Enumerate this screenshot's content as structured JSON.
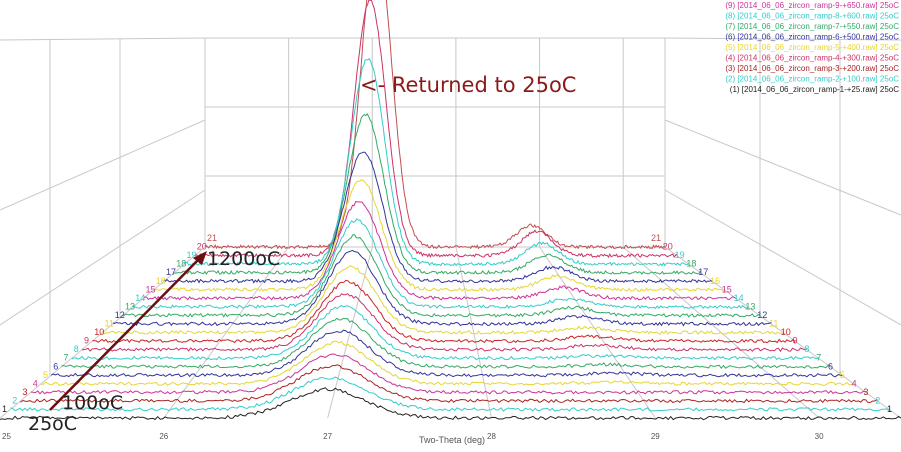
{
  "chart_data": {
    "type": "line",
    "view": "3d-waterfall",
    "xlabel": "Two-Theta (deg)",
    "xlim": [
      25,
      30.5
    ],
    "x_ticks": [
      "25",
      "26",
      "27",
      "28",
      "29",
      "30"
    ],
    "grid": true,
    "legend_position": "top-right",
    "legend": [
      "(9) [2014_06_06_zircon_ramp-9-+650.raw] 25oC",
      "(8) [2014_06_06_zircon_ramp-8-+600.raw] 25oC",
      "(7) [2014_06_06_zircon_ramp-7-+550.raw] 25oC",
      "(6) [2014_06_06_zircon_ramp-6-+500.raw] 25oC",
      "(5) [2014_06_06_zircon_ramp-5-+400.raw] 25oC",
      "(4) [2014_06_06_zircon_ramp-4-+300.raw] 25oC",
      "(3) [2014_06_06_zircon_ramp-3-+200.raw] 25oC",
      "(2) [2014_06_06_zircon_ramp-2-+100.raw] 25oC",
      "(1) [2014_06_06_zircon_ramp-1-+25.raw] 25oC"
    ],
    "legend_colors": [
      "#cc3399",
      "#33cccc",
      "#33aa66",
      "#333399",
      "#e6d633",
      "#cc3366",
      "#aa2222",
      "#33cccc",
      "#222222"
    ],
    "series_colors": [
      "#222222",
      "#33cccc",
      "#aa2222",
      "#cc3399",
      "#e6d633",
      "#333399",
      "#33aa66",
      "#33cccc",
      "#cc3366",
      "#cc2222",
      "#e6d633",
      "#333399",
      "#33aa66",
      "#33cccc",
      "#cc3399",
      "#e6d633",
      "#333399",
      "#33aa66",
      "#33cccc",
      "#cc3366",
      "#c05050"
    ],
    "series": [
      {
        "index": 1,
        "peak_x": 27.0,
        "peak_intensity": 0.16,
        "peak2_x": 28.9,
        "peak2_intensity": 0.0
      },
      {
        "index": 2,
        "peak_x": 27.0,
        "peak_intensity": 0.17,
        "peak2_x": 28.9,
        "peak2_intensity": 0.0
      },
      {
        "index": 3,
        "peak_x": 27.0,
        "peak_intensity": 0.18,
        "peak2_x": 28.9,
        "peak2_intensity": 0.0
      },
      {
        "index": 4,
        "peak_x": 27.0,
        "peak_intensity": 0.19,
        "peak2_x": 28.9,
        "peak2_intensity": 0.0
      },
      {
        "index": 5,
        "peak_x": 27.0,
        "peak_intensity": 0.2,
        "peak2_x": 28.9,
        "peak2_intensity": 0.01
      },
      {
        "index": 6,
        "peak_x": 27.0,
        "peak_intensity": 0.21,
        "peak2_x": 28.9,
        "peak2_intensity": 0.01
      },
      {
        "index": 7,
        "peak_x": 27.0,
        "peak_intensity": 0.22,
        "peak2_x": 28.9,
        "peak2_intensity": 0.01
      },
      {
        "index": 8,
        "peak_x": 27.0,
        "peak_intensity": 0.23,
        "peak2_x": 28.9,
        "peak2_intensity": 0.01
      },
      {
        "index": 9,
        "peak_x": 27.0,
        "peak_intensity": 0.24,
        "peak2_x": 28.9,
        "peak2_intensity": 0.02
      },
      {
        "index": 10,
        "peak_x": 27.0,
        "peak_intensity": 0.25,
        "peak2_x": 28.9,
        "peak2_intensity": 0.02
      },
      {
        "index": 11,
        "peak_x": 27.0,
        "peak_intensity": 0.27,
        "peak2_x": 28.9,
        "peak2_intensity": 0.02
      },
      {
        "index": 12,
        "peak_x": 27.0,
        "peak_intensity": 0.29,
        "peak2_x": 28.9,
        "peak2_intensity": 0.03
      },
      {
        "index": 13,
        "peak_x": 27.0,
        "peak_intensity": 0.31,
        "peak2_x": 28.9,
        "peak2_intensity": 0.03
      },
      {
        "index": 14,
        "peak_x": 27.0,
        "peak_intensity": 0.33,
        "peak2_x": 28.9,
        "peak2_intensity": 0.03
      },
      {
        "index": 15,
        "peak_x": 27.0,
        "peak_intensity": 0.36,
        "peak2_x": 28.9,
        "peak2_intensity": 0.04
      },
      {
        "index": 16,
        "peak_x": 27.0,
        "peak_intensity": 0.4,
        "peak2_x": 28.9,
        "peak2_intensity": 0.05
      },
      {
        "index": 17,
        "peak_x": 27.0,
        "peak_intensity": 0.46,
        "peak2_x": 28.9,
        "peak2_intensity": 0.05
      },
      {
        "index": 18,
        "peak_x": 27.0,
        "peak_intensity": 0.55,
        "peak2_x": 28.9,
        "peak2_intensity": 0.06
      },
      {
        "index": 19,
        "peak_x": 27.0,
        "peak_intensity": 0.7,
        "peak2_x": 28.9,
        "peak2_intensity": 0.07
      },
      {
        "index": 20,
        "peak_x": 27.0,
        "peak_intensity": 0.85,
        "peak2_x": 28.9,
        "peak2_intensity": 0.08
      },
      {
        "index": 21,
        "peak_x": 27.05,
        "peak_intensity": 1.0,
        "peak2_x": 28.9,
        "peak2_intensity": 0.07
      }
    ],
    "annotations": [
      {
        "text": "<- Returned to 25oC",
        "color": "#8b1a1a"
      },
      {
        "text": "1200oC",
        "color": "#222222"
      },
      {
        "text": "100oC",
        "color": "#222222"
      },
      {
        "text": "25oC",
        "color": "#222222"
      }
    ],
    "arrow_color": "#6b1010"
  }
}
